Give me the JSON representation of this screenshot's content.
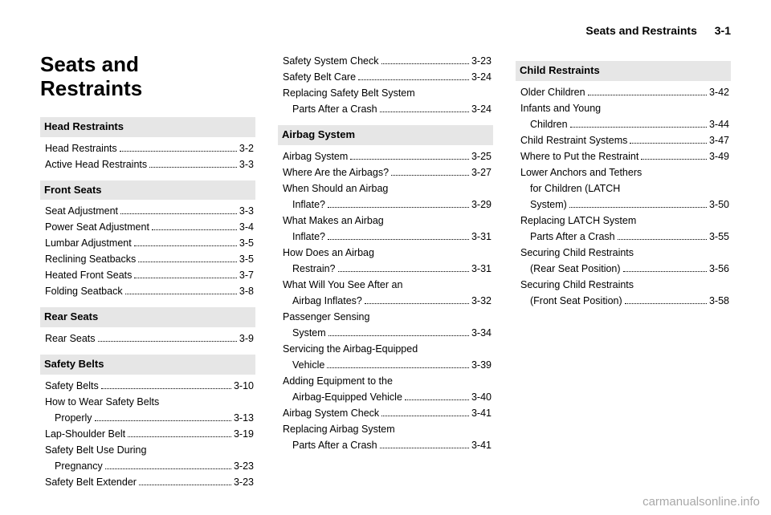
{
  "header": {
    "title": "Seats and Restraints",
    "page": "3-1"
  },
  "mainTitle": "Seats and\nRestraints",
  "columns": [
    [
      {
        "type": "title"
      },
      {
        "type": "section",
        "text": "Head Restraints"
      },
      {
        "type": "row",
        "label": "Head Restraints",
        "page": "3-2"
      },
      {
        "type": "row",
        "label": "Active Head Restraints",
        "page": "3-3"
      },
      {
        "type": "section",
        "text": "Front Seats"
      },
      {
        "type": "row",
        "label": "Seat Adjustment",
        "page": "3-3"
      },
      {
        "type": "row",
        "label": "Power Seat Adjustment",
        "page": "3-4"
      },
      {
        "type": "row",
        "label": "Lumbar Adjustment",
        "page": "3-5"
      },
      {
        "type": "row",
        "label": "Reclining Seatbacks",
        "page": "3-5"
      },
      {
        "type": "row",
        "label": "Heated Front Seats",
        "page": "3-7"
      },
      {
        "type": "row",
        "label": "Folding Seatback",
        "page": "3-8"
      },
      {
        "type": "section",
        "text": "Rear Seats"
      },
      {
        "type": "row",
        "label": "Rear Seats",
        "page": "3-9"
      },
      {
        "type": "section",
        "text": "Safety Belts"
      },
      {
        "type": "row",
        "label": "Safety Belts",
        "page": "3-10"
      },
      {
        "type": "row",
        "label": "How to Wear Safety Belts"
      },
      {
        "type": "row",
        "label": "Properly",
        "indent": true,
        "page": "3-13"
      },
      {
        "type": "row",
        "label": "Lap-Shoulder Belt",
        "page": "3-19"
      },
      {
        "type": "row",
        "label": "Safety Belt Use During"
      },
      {
        "type": "row",
        "label": "Pregnancy",
        "indent": true,
        "page": "3-23"
      },
      {
        "type": "row",
        "label": "Safety Belt Extender",
        "page": "3-23"
      }
    ],
    [
      {
        "type": "row",
        "label": "Safety System Check",
        "page": "3-23"
      },
      {
        "type": "row",
        "label": "Safety Belt Care",
        "page": "3-24"
      },
      {
        "type": "row",
        "label": "Replacing Safety Belt System"
      },
      {
        "type": "row",
        "label": "Parts After a Crash",
        "indent": true,
        "page": "3-24"
      },
      {
        "type": "section",
        "text": "Airbag System"
      },
      {
        "type": "row",
        "label": "Airbag System",
        "page": "3-25"
      },
      {
        "type": "row",
        "label": "Where Are the Airbags?",
        "page": "3-27"
      },
      {
        "type": "row",
        "label": "When Should an Airbag"
      },
      {
        "type": "row",
        "label": "Inflate?",
        "indent": true,
        "page": "3-29"
      },
      {
        "type": "row",
        "label": "What Makes an Airbag"
      },
      {
        "type": "row",
        "label": "Inflate?",
        "indent": true,
        "page": "3-31"
      },
      {
        "type": "row",
        "label": "How Does an Airbag"
      },
      {
        "type": "row",
        "label": "Restrain?",
        "indent": true,
        "page": "3-31"
      },
      {
        "type": "row",
        "label": "What Will You See After an"
      },
      {
        "type": "row",
        "label": "Airbag Inflates?",
        "indent": true,
        "page": "3-32"
      },
      {
        "type": "row",
        "label": "Passenger Sensing"
      },
      {
        "type": "row",
        "label": "System",
        "indent": true,
        "page": "3-34"
      },
      {
        "type": "row",
        "label": "Servicing the Airbag-Equipped"
      },
      {
        "type": "row",
        "label": "Vehicle",
        "indent": true,
        "page": "3-39"
      },
      {
        "type": "row",
        "label": "Adding Equipment to the"
      },
      {
        "type": "row",
        "label": "Airbag-Equipped Vehicle",
        "indent": true,
        "page": "3-40"
      },
      {
        "type": "row",
        "label": "Airbag System Check",
        "page": "3-41"
      },
      {
        "type": "row",
        "label": "Replacing Airbag System"
      },
      {
        "type": "row",
        "label": "Parts After a Crash",
        "indent": true,
        "page": "3-41"
      }
    ],
    [
      {
        "type": "section",
        "text": "Child Restraints"
      },
      {
        "type": "row",
        "label": "Older Children",
        "page": "3-42"
      },
      {
        "type": "row",
        "label": "Infants and Young"
      },
      {
        "type": "row",
        "label": "Children",
        "indent": true,
        "page": "3-44"
      },
      {
        "type": "row",
        "label": "Child Restraint Systems",
        "page": "3-47"
      },
      {
        "type": "row",
        "label": "Where to Put the Restraint",
        "page": "3-49"
      },
      {
        "type": "row",
        "label": "Lower Anchors and Tethers"
      },
      {
        "type": "row",
        "label": "for Children (LATCH",
        "indent": true
      },
      {
        "type": "row",
        "label": "System)",
        "indent": true,
        "page": "3-50"
      },
      {
        "type": "row",
        "label": "Replacing LATCH System"
      },
      {
        "type": "row",
        "label": "Parts After a Crash",
        "indent": true,
        "page": "3-55"
      },
      {
        "type": "row",
        "label": "Securing Child Restraints"
      },
      {
        "type": "row",
        "label": "(Rear Seat Position)",
        "indent": true,
        "page": "3-56"
      },
      {
        "type": "row",
        "label": "Securing Child Restraints"
      },
      {
        "type": "row",
        "label": "(Front Seat Position)",
        "indent": true,
        "page": "3-58"
      }
    ]
  ],
  "watermark": "carmanualsonline.info"
}
